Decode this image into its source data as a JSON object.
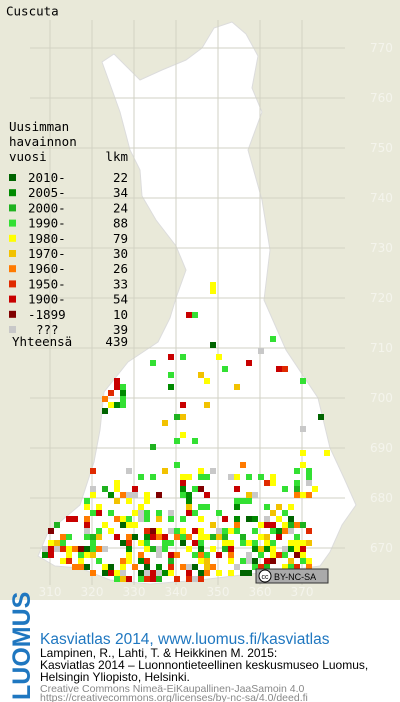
{
  "title": "Cuscuta",
  "legend": {
    "heading": [
      "Uusimman",
      "havainnon",
      "vuosi"
    ],
    "count_heading": "lkm",
    "rows": [
      {
        "label": "2010-",
        "count": 22,
        "color": "#006400"
      },
      {
        "label": "2005-",
        "count": 34,
        "color": "#008a00"
      },
      {
        "label": "2000-",
        "count": 24,
        "color": "#1fb21f"
      },
      {
        "label": "1990-",
        "count": 88,
        "color": "#33e033"
      },
      {
        "label": "1980-",
        "count": 79,
        "color": "#ffff00"
      },
      {
        "label": "1970-",
        "count": 30,
        "color": "#f2c200"
      },
      {
        "label": "1960-",
        "count": 26,
        "color": "#ff7a00"
      },
      {
        "label": "1950-",
        "count": 33,
        "color": "#e02a00"
      },
      {
        "label": "1900-",
        "count": 54,
        "color": "#c80000"
      },
      {
        "label": "-1899",
        "count": 10,
        "color": "#800000"
      },
      {
        "label": "???",
        "count": 39,
        "color": "#c8c8c8"
      }
    ],
    "total_label": "Yhteensä",
    "total": 439
  },
  "grid": {
    "northing": [
      770,
      760,
      750,
      740,
      730,
      720,
      710,
      700,
      690,
      680,
      670
    ],
    "easting": [
      310,
      320,
      330,
      340,
      350,
      360,
      370
    ]
  },
  "badge": {
    "icon": "cc",
    "text": "BY-NC-SA"
  },
  "logo": "LUOMUS",
  "footer": {
    "headline": "Kasviatlas 2014, www.luomus.fi/kasviatlas",
    "citation": [
      "Lampinen, R., Lahti, T. & Heikkinen M. 2015:",
      "Kasviatlas 2014 – Luonnontieteellinen keskusmuseo Luomus,",
      "Helsingin Yliopisto, Helsinki."
    ],
    "license": [
      "Creative Commons Nimeä-EiKaupallinen-JaaSamoin 4.0",
      "https://creativecommons.org/licenses/by-nc-sa/4.0/deed.fi"
    ]
  }
}
